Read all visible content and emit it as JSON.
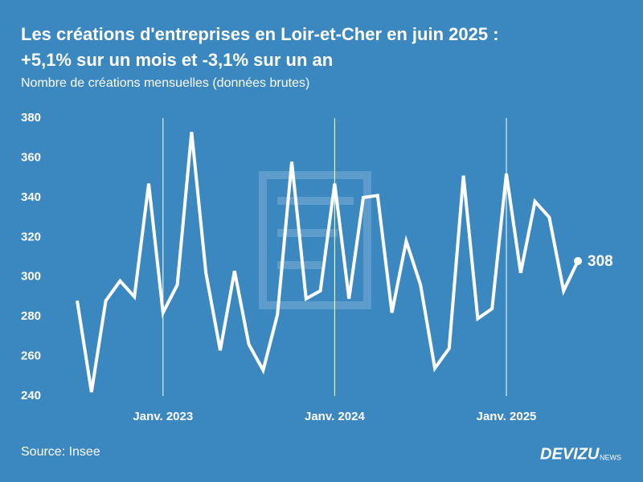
{
  "chart_data": {
    "type": "line",
    "title": "Les créations d'entreprises en Loir-et-Cher en juin 2025 :",
    "title_line2": "+5,1% sur un mois et -3,1% sur un an",
    "subtitle": "Nombre de créations mensuelles (données brutes)",
    "source": "Source: Insee",
    "logo": "DEVIZU",
    "logo_suffix": "NEWS",
    "categories": [
      null,
      null,
      null,
      null,
      null,
      null,
      "Janv. 2023",
      null,
      null,
      null,
      null,
      null,
      null,
      null,
      null,
      null,
      null,
      null,
      "Janv. 2024",
      null,
      null,
      null,
      null,
      null,
      null,
      null,
      null,
      null,
      null,
      null,
      "Janv. 2025",
      null,
      null,
      null,
      null,
      null
    ],
    "series": [
      {
        "name": "Créations",
        "color": "#ffffff",
        "values": [
          288,
          242,
          288,
          298,
          290,
          347,
          282,
          296,
          373,
          302,
          263,
          303,
          266,
          253,
          281,
          358,
          289,
          293,
          347,
          289,
          340,
          341,
          282,
          318,
          296,
          254,
          264,
          351,
          279,
          284,
          352,
          302,
          338,
          330,
          293,
          308
        ]
      }
    ],
    "ylim": [
      240,
      380
    ],
    "yticks": [
      240,
      260,
      280,
      300,
      320,
      340,
      360,
      380
    ],
    "grid": "x-labeled"
  }
}
